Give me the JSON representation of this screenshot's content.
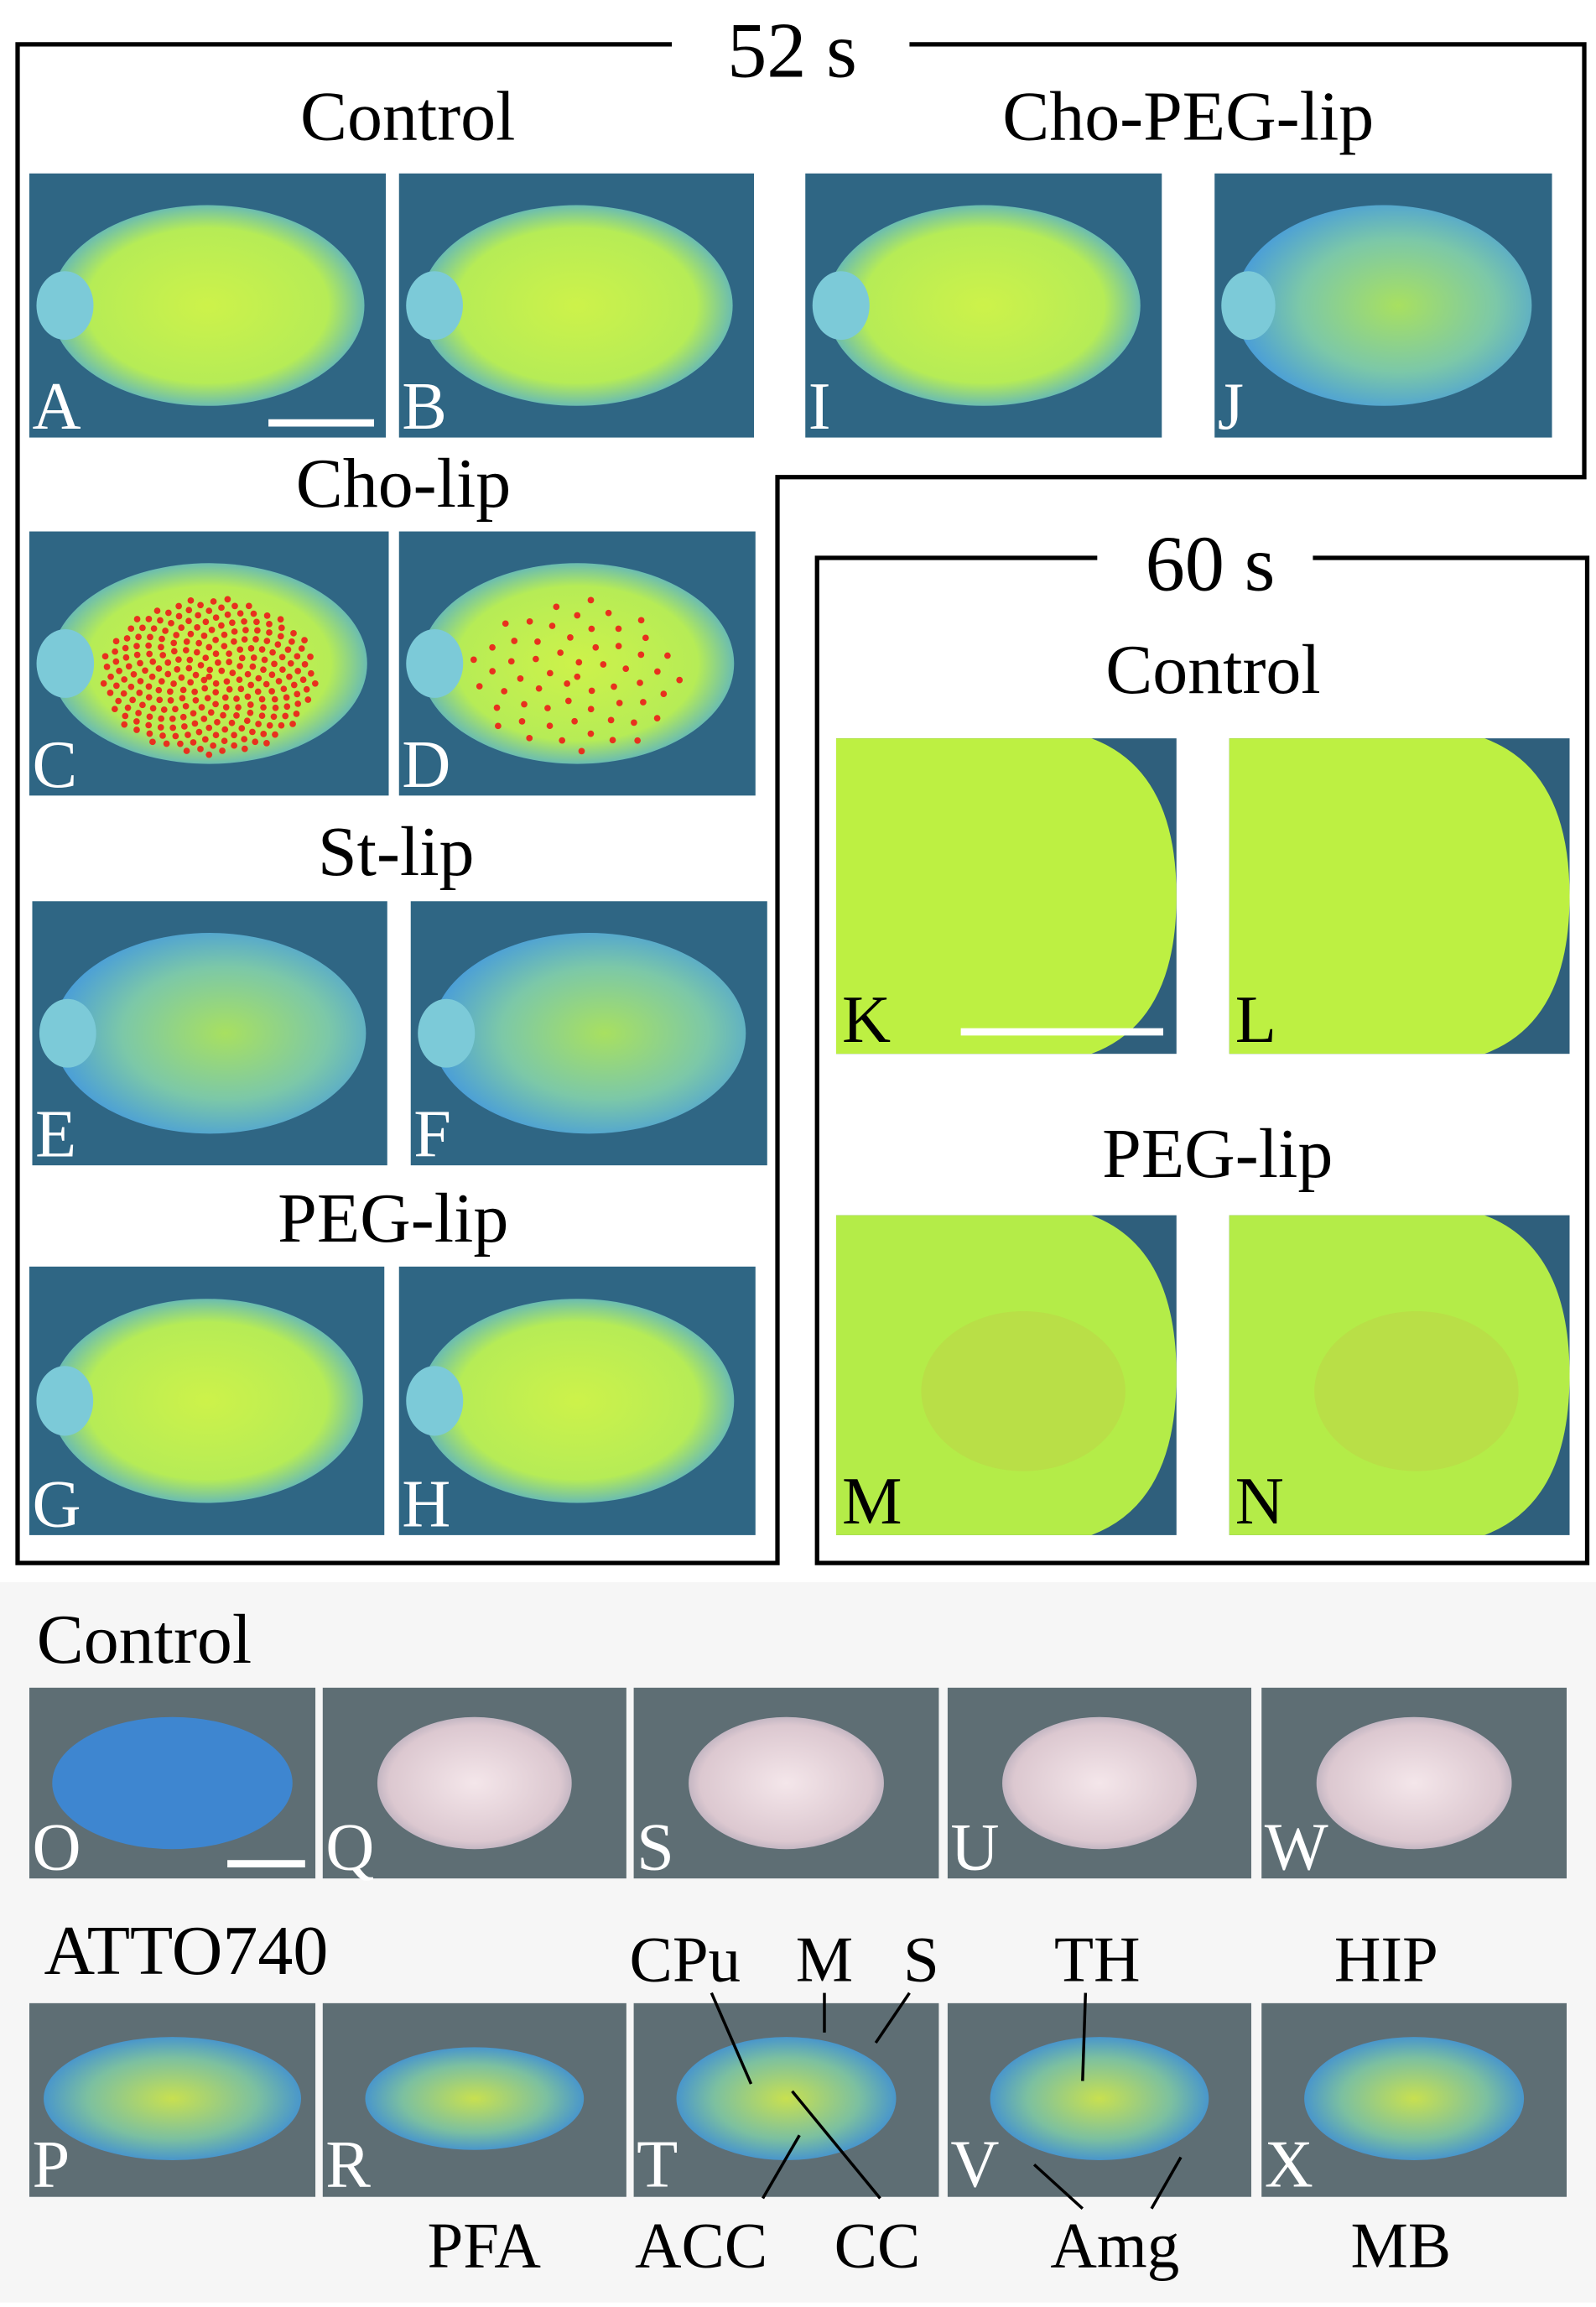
{
  "figure": {
    "top": {
      "time": "52 s",
      "groups": [
        {
          "title": "Control",
          "panels": [
            "A",
            "B"
          ]
        },
        {
          "title": "Cho-PEG-lip",
          "panels": [
            "I",
            "J"
          ]
        },
        {
          "title": "Cho-lip",
          "panels": [
            "C",
            "D"
          ]
        },
        {
          "title": "St-lip",
          "panels": [
            "E",
            "F"
          ]
        },
        {
          "title": "PEG-lip",
          "panels": [
            "G",
            "H"
          ]
        }
      ]
    },
    "right": {
      "time": "60 s",
      "groups": [
        {
          "title": "Control",
          "panels": [
            "K",
            "L"
          ]
        },
        {
          "title": "PEG-lip",
          "panels": [
            "M",
            "N"
          ]
        }
      ]
    },
    "bottom": {
      "row1": {
        "title": "Control",
        "panels": [
          "O",
          "Q",
          "S",
          "U",
          "W"
        ]
      },
      "row2": {
        "title": "ATTO740",
        "panels": [
          "P",
          "R",
          "T",
          "V",
          "X"
        ]
      },
      "annotations": [
        "PFA",
        "CPu",
        "M",
        "S",
        "ACC",
        "CC",
        "TH",
        "Amg",
        "HIP",
        "MB"
      ]
    }
  }
}
